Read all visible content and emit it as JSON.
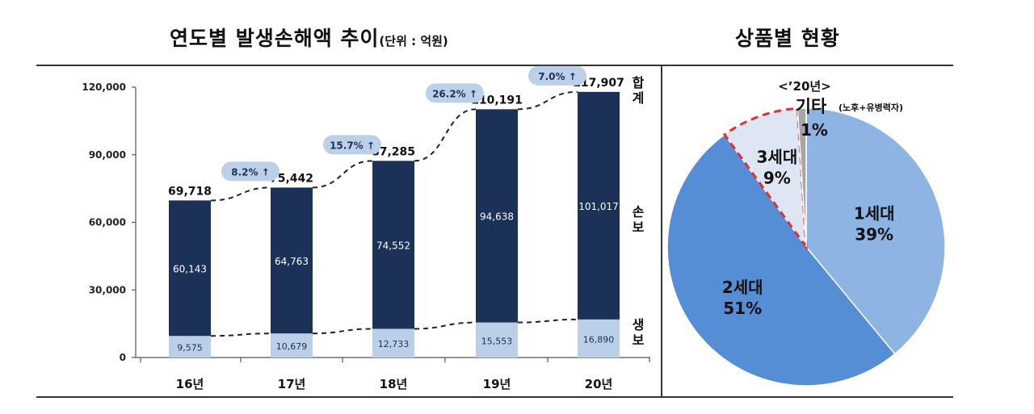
{
  "bar_chart": {
    "title": "연도별 발생손해액 추이",
    "unit_note": "(단위 : 억원)",
    "side_labels": {
      "total": "합계",
      "nonlife": "손보",
      "life": "생보"
    },
    "colors": {
      "nonlife": "#1b3157",
      "life": "#bccfe9",
      "badge": "#bdd0ea",
      "axis": "#555555"
    }
  },
  "pie_chart": {
    "title": "상품별 현황",
    "year_label": "<’20년>",
    "other_label": "기타",
    "other_note": "(노후+유병력자)",
    "colors": {
      "gen1": "#8eb4e3",
      "gen2": "#558ed5",
      "gen3": "#dde6f2",
      "other": "#a6a6a6",
      "highlight": "#e03030"
    }
  },
  "chart_data": [
    {
      "type": "bar",
      "stacked": true,
      "categories": [
        "16년",
        "17년",
        "18년",
        "19년",
        "20년"
      ],
      "series": [
        {
          "name": "생보",
          "values": [
            9575,
            10679,
            12733,
            15553,
            16890
          ]
        },
        {
          "name": "손보",
          "values": [
            60143,
            64763,
            74552,
            94638,
            101017
          ]
        }
      ],
      "totals": [
        69718,
        75442,
        87285,
        110191,
        117907
      ],
      "total_labels": [
        "69,718",
        "75,442",
        "87,285",
        "110,191",
        "117,907"
      ],
      "life_labels": [
        "9,575",
        "10,679",
        "12,733",
        "15,553",
        "16,890"
      ],
      "nonlife_labels": [
        "60,143",
        "64,763",
        "74,552",
        "94,638",
        "101,017"
      ],
      "growth_labels": [
        "8.2% ↑",
        "15.7% ↑",
        "26.2% ↑",
        "7.0% ↑"
      ],
      "yticks": [
        0,
        30000,
        60000,
        90000,
        120000
      ],
      "ytick_labels": [
        "0",
        "30,000",
        "60,000",
        "90,000",
        "120,000"
      ],
      "ylim": [
        0,
        120000
      ]
    },
    {
      "type": "pie",
      "slices": [
        {
          "label": "1세대",
          "pct_label": "39%",
          "value": 39
        },
        {
          "label": "2세대",
          "pct_label": "51%",
          "value": 51
        },
        {
          "label": "3세대",
          "pct_label": "9%",
          "value": 9
        },
        {
          "label": "기타",
          "pct_label": "1%",
          "value": 1
        }
      ]
    }
  ]
}
